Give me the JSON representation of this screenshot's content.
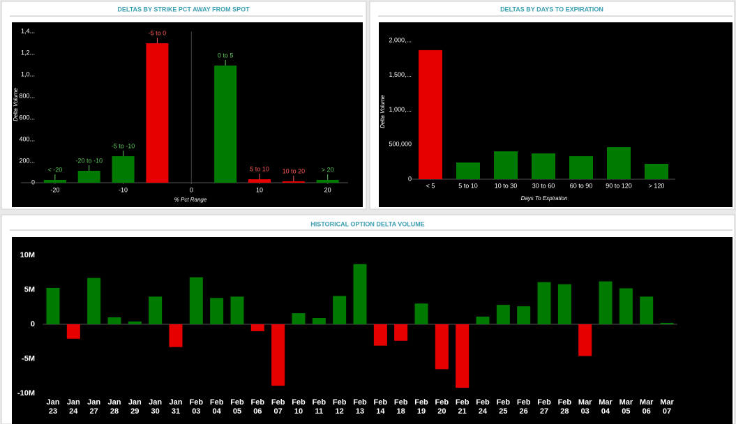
{
  "chart_data": [
    {
      "type": "bar",
      "title": "DELTAS BY STRIKE PCT AWAY FROM SPOT",
      "x_label": "% Pct Range",
      "y_label": "Delta Volume",
      "x": [
        -20,
        -15,
        -10,
        -5,
        5,
        10,
        15,
        20
      ],
      "bar_labels": [
        "< -20",
        "-20 to -10",
        "-5 to -10",
        "-5 to 0",
        "0 to 5",
        "5 to 10",
        "10 to 20",
        "> 20"
      ],
      "values": [
        26000,
        110000,
        245000,
        1290000,
        1084000,
        32000,
        13000,
        26000
      ],
      "colors": [
        "#007a00",
        "#007a00",
        "#007a00",
        "#e60000",
        "#007a00",
        "#e60000",
        "#e60000",
        "#007a00"
      ],
      "label_colors": [
        "#5fc85f",
        "#5fc85f",
        "#5fc85f",
        "#ff5a5a",
        "#5fc85f",
        "#ff5a5a",
        "#ff5a5a",
        "#5fc85f"
      ],
      "xlim": [
        -25,
        23
      ],
      "xticks": [
        -20,
        -10,
        0,
        10,
        20
      ],
      "ylim": [
        0,
        1450000
      ],
      "yticks": [
        0,
        {
          "value": 200000,
          "label": "200..."
        },
        {
          "value": 400000,
          "label": "400..."
        },
        {
          "value": 600000,
          "label": "600..."
        },
        {
          "value": 800000,
          "label": "800..."
        },
        {
          "value": 1000000,
          "label": "1,0..."
        },
        {
          "value": 1200000,
          "label": "1,2..."
        },
        {
          "value": 1400000,
          "label": "1,4..."
        }
      ]
    },
    {
      "type": "bar",
      "title": "DELTAS BY DAYS TO EXPIRATION",
      "x_label": "Days To Expiration",
      "y_label": "Delta Volume",
      "categories": [
        "< 5",
        "5 to 10",
        "10 to 30",
        "30 to 60",
        "60 to 90",
        "90 to 120",
        "> 120"
      ],
      "values": [
        1860000,
        241000,
        402000,
        372000,
        332000,
        462000,
        221000
      ],
      "colors": [
        "#e60000",
        "#007a00",
        "#007a00",
        "#007a00",
        "#007a00",
        "#007a00",
        "#007a00"
      ],
      "ylim": [
        0,
        2100000
      ],
      "yticks": [
        0,
        {
          "value": 500000,
          "label": "500,000"
        },
        {
          "value": 1000000,
          "label": "1,000,..."
        },
        {
          "value": 1500000,
          "label": "1,500,..."
        },
        {
          "value": 2000000,
          "label": "2,000,..."
        }
      ]
    },
    {
      "type": "bar",
      "title": "HISTORICAL OPTION DELTA VOLUME",
      "categories": [
        "Jan 23",
        "Jan 24",
        "Jan 27",
        "Jan 28",
        "Jan 29",
        "Jan 30",
        "Jan 31",
        "Feb 03",
        "Feb 04",
        "Feb 05",
        "Feb 06",
        "Feb 07",
        "Feb 10",
        "Feb 11",
        "Feb 12",
        "Feb 13",
        "Feb 14",
        "Feb 18",
        "Feb 19",
        "Feb 20",
        "Feb 21",
        "Feb 24",
        "Feb 25",
        "Feb 26",
        "Feb 27",
        "Feb 28",
        "Mar 03",
        "Mar 04",
        "Mar 05",
        "Mar 06",
        "Mar 07"
      ],
      "values": [
        5250000,
        -2100000,
        6700000,
        1000000,
        400000,
        4000000,
        -3300000,
        6800000,
        3800000,
        4000000,
        -1000000,
        -8900000,
        1600000,
        900000,
        4100000,
        8700000,
        -3100000,
        -2400000,
        3000000,
        -6500000,
        -9200000,
        1100000,
        2800000,
        2600000,
        6100000,
        5800000,
        -4600000,
        6200000,
        5200000,
        4000000,
        200000
      ],
      "positive_color": "#007a00",
      "negative_color": "#e60000",
      "ylim": [
        -10500000,
        11500000
      ],
      "yticks": [
        {
          "value": -10000000,
          "label": "-10M"
        },
        {
          "value": -5000000,
          "label": "-5M"
        },
        0,
        {
          "value": 5000000,
          "label": "5M"
        },
        {
          "value": 10000000,
          "label": "10M"
        }
      ]
    }
  ]
}
